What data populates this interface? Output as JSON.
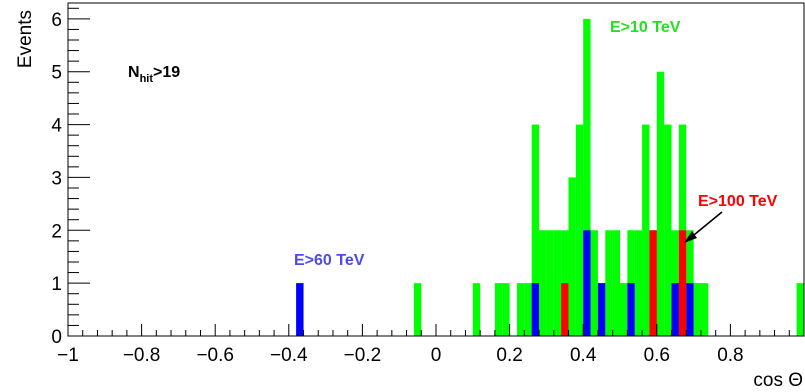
{
  "chart_data": {
    "type": "bar",
    "bin_width": 0.02,
    "xlim": [
      -1,
      1
    ],
    "ylim": [
      0,
      6.3
    ],
    "xlabel": "cos Θ",
    "ylabel": "Events",
    "x_ticks": [
      -1,
      -0.8,
      -0.6,
      -0.4,
      -0.2,
      0,
      0.2,
      0.4,
      0.6,
      0.8
    ],
    "x_tick_labels": [
      "−1",
      "−0.8",
      "−0.6",
      "−0.4",
      "−0.2",
      "0",
      "0.2",
      "0.4",
      "0.6",
      "0.8"
    ],
    "y_ticks": [
      0,
      1,
      2,
      3,
      4,
      5,
      6
    ],
    "y_tick_labels": [
      "0",
      "1",
      "2",
      "3",
      "4",
      "5",
      "6"
    ],
    "colors": {
      "green": "#00ff00",
      "blue": "#0000ff",
      "red": "#ff0000",
      "blue_text": "#4a4af0",
      "green_text": "#22e022"
    },
    "series": [
      {
        "name": "E>10 TeV",
        "color": "#00ff00",
        "bins": [
          {
            "x": -0.38,
            "y": 1
          },
          {
            "x": -0.06,
            "y": 1
          },
          {
            "x": 0.1,
            "y": 1
          },
          {
            "x": 0.16,
            "y": 1
          },
          {
            "x": 0.18,
            "y": 1
          },
          {
            "x": 0.22,
            "y": 1
          },
          {
            "x": 0.24,
            "y": 1
          },
          {
            "x": 0.26,
            "y": 4
          },
          {
            "x": 0.28,
            "y": 2
          },
          {
            "x": 0.3,
            "y": 2
          },
          {
            "x": 0.32,
            "y": 2
          },
          {
            "x": 0.34,
            "y": 2
          },
          {
            "x": 0.36,
            "y": 3
          },
          {
            "x": 0.38,
            "y": 4
          },
          {
            "x": 0.4,
            "y": 6
          },
          {
            "x": 0.42,
            "y": 2
          },
          {
            "x": 0.44,
            "y": 1
          },
          {
            "x": 0.46,
            "y": 2
          },
          {
            "x": 0.48,
            "y": 2
          },
          {
            "x": 0.5,
            "y": 1
          },
          {
            "x": 0.52,
            "y": 2
          },
          {
            "x": 0.54,
            "y": 2
          },
          {
            "x": 0.56,
            "y": 4
          },
          {
            "x": 0.58,
            "y": 2
          },
          {
            "x": 0.6,
            "y": 5
          },
          {
            "x": 0.62,
            "y": 4
          },
          {
            "x": 0.64,
            "y": 2
          },
          {
            "x": 0.66,
            "y": 4
          },
          {
            "x": 0.68,
            "y": 2
          },
          {
            "x": 0.7,
            "y": 1
          },
          {
            "x": 0.72,
            "y": 1
          },
          {
            "x": 0.98,
            "y": 1
          }
        ]
      },
      {
        "name": "E>60 TeV",
        "color": "#0000ff",
        "bins": [
          {
            "x": -0.38,
            "y": 1
          },
          {
            "x": 0.26,
            "y": 1
          },
          {
            "x": 0.4,
            "y": 2
          },
          {
            "x": 0.44,
            "y": 1
          },
          {
            "x": 0.52,
            "y": 1
          },
          {
            "x": 0.64,
            "y": 1
          },
          {
            "x": 0.68,
            "y": 1
          }
        ]
      },
      {
        "name": "E>100 TeV",
        "color": "#ff0000",
        "bins": [
          {
            "x": 0.34,
            "y": 1
          },
          {
            "x": 0.58,
            "y": 2
          },
          {
            "x": 0.66,
            "y": 2
          }
        ]
      }
    ],
    "annotations": {
      "nhit_main": "N",
      "nhit_sub": "hit",
      "nhit_rest": ">19",
      "e10": "E>10 TeV",
      "e60": "E>60 TeV",
      "e100": "E>100 TeV"
    }
  }
}
